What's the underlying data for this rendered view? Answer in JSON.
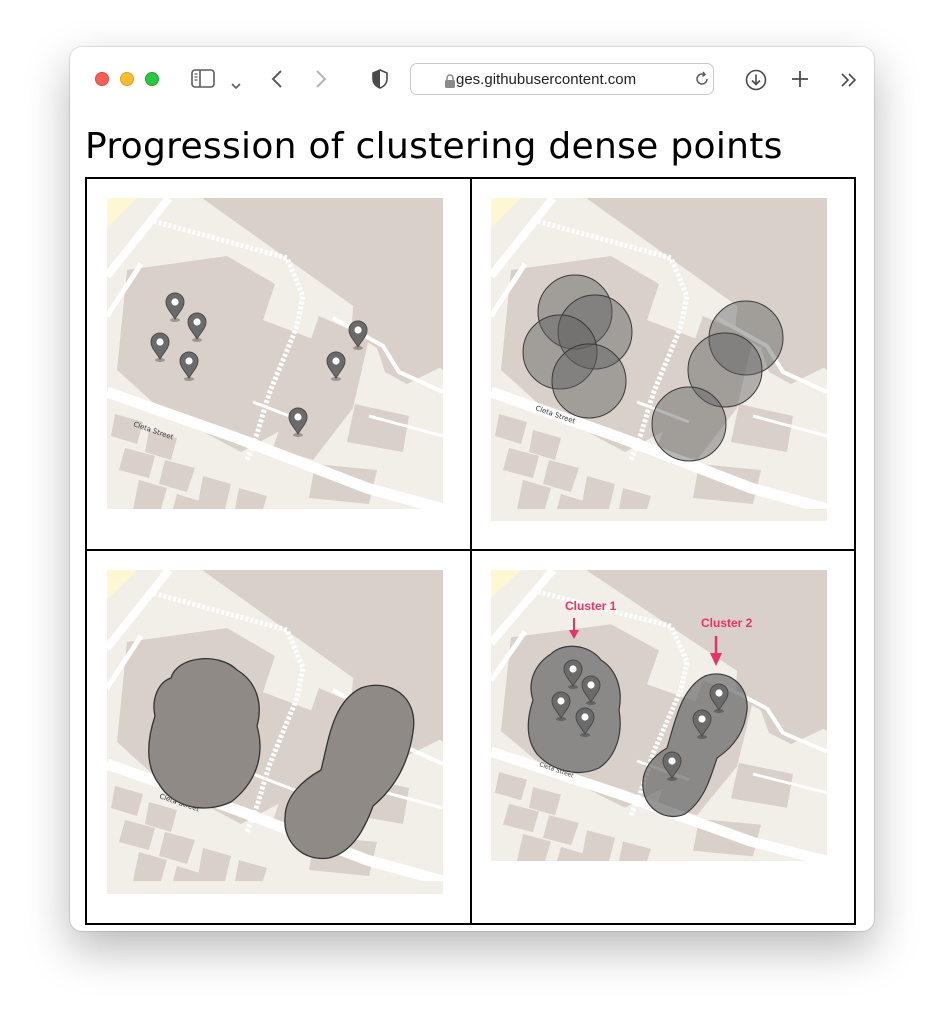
{
  "browser": {
    "url_display": "ges.githubusercontent.com",
    "icons": [
      "sidebar-icon",
      "chevron-down-icon",
      "back-icon",
      "forward-icon",
      "shield-icon",
      "lock-icon",
      "reload-icon",
      "download-icon",
      "new-tab-icon",
      "more-icon"
    ],
    "traffic_light_colors": [
      "#fe5f57",
      "#febc2e",
      "#28c840"
    ]
  },
  "page": {
    "title": "Progression of clustering dense points"
  },
  "panels": [
    {
      "step": 1,
      "street_label": "Cleta Street",
      "annotations": []
    },
    {
      "step": 2,
      "street_label": "Cleta Street",
      "annotations": []
    },
    {
      "step": 3,
      "street_label": "Cleta Street",
      "annotations": []
    },
    {
      "step": 4,
      "street_label": "Cleta Street",
      "annotations": [
        "Cluster 1",
        "Cluster 2"
      ]
    }
  ],
  "colors": {
    "map_background": "#f2efe9",
    "building": "#d8d0c9",
    "road": "#ffffff",
    "marker": "#6b6b6b",
    "cluster_fill": "#707070",
    "annotation": "#e8336a"
  }
}
